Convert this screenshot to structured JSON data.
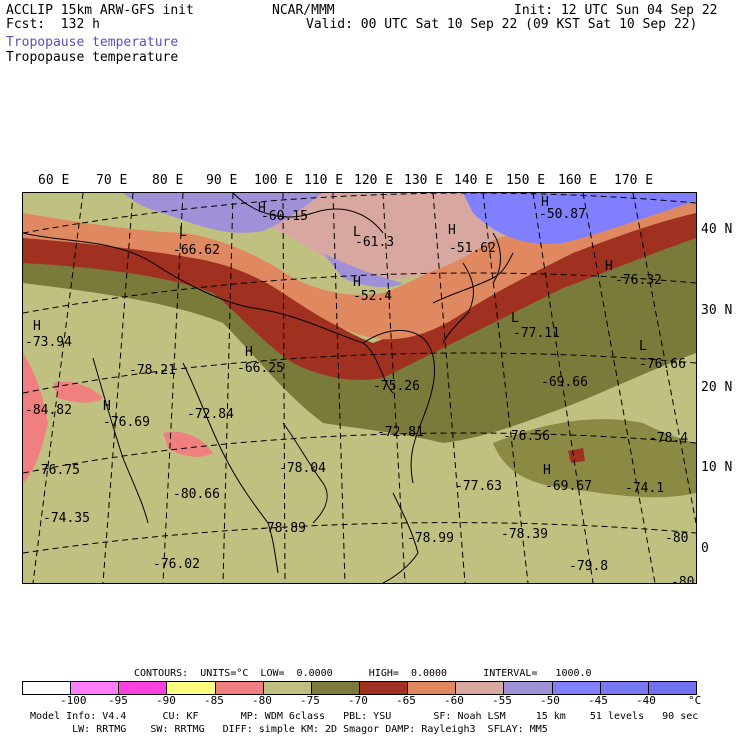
{
  "header": {
    "title_left": "ACCLIP 15km ARW-GFS init",
    "fcst": "Fcst:  132 h",
    "field_line1": "Tropopause temperature",
    "field_line2": "Tropopause temperature",
    "center_title": "NCAR/MMM",
    "init": "Init: 12 UTC Sun 04 Sep 22",
    "valid": "Valid: 00 UTC Sat 10 Sep 22 (09 KST Sat 10 Sep 22)"
  },
  "map": {
    "lon_labels": [
      "60 E",
      "70 E",
      "80 E",
      "90 E",
      "100 E",
      "110 E",
      "120 E",
      "130 E",
      "140 E",
      "150 E",
      "160 E",
      "170 E"
    ],
    "lat_labels": [
      "40 N",
      "30 N",
      "20 N",
      "10 N",
      "0"
    ],
    "labels": [
      {
        "text": "-60.15"
      },
      {
        "text": "-61.3"
      },
      {
        "text": "-50.87"
      },
      {
        "text": "-66.62"
      },
      {
        "text": "-51.62"
      },
      {
        "text": "-76.32"
      },
      {
        "text": "-52.4"
      },
      {
        "text": "-73.94"
      },
      {
        "text": "-77.11"
      },
      {
        "text": "-78.21"
      },
      {
        "text": "-66.25"
      },
      {
        "text": "-76.66"
      },
      {
        "text": "-84.82"
      },
      {
        "text": "-72.84"
      },
      {
        "text": "-75.26"
      },
      {
        "text": "-69.66"
      },
      {
        "text": "-76.69"
      },
      {
        "text": "-72.81"
      },
      {
        "text": "-76.56"
      },
      {
        "text": "-78.4"
      },
      {
        "text": "-76.75"
      },
      {
        "text": "-78.04"
      },
      {
        "text": "-77.63"
      },
      {
        "text": "-69.67"
      },
      {
        "text": "-74.1"
      },
      {
        "text": "-80.66"
      },
      {
        "text": "-74.35"
      },
      {
        "text": "-78.89"
      },
      {
        "text": "-78.99"
      },
      {
        "text": "-78.39"
      },
      {
        "text": "-80"
      },
      {
        "text": "-76.02"
      },
      {
        "text": "-79.8"
      },
      {
        "text": "-80"
      }
    ],
    "colors": {
      "lt_100": "#ffffff",
      "n95": "#ff80ff",
      "n90": "#ff40e0",
      "n85": "#ffff80",
      "n80": "#f08080",
      "n75": "#c0c080",
      "n70": "#7a7a3a",
      "n65": "#a03020",
      "n60": "#e08860",
      "n55": "#d8a8a0",
      "n50": "#a090d8",
      "n45": "#8080ff",
      "n40": "#7878f0"
    }
  },
  "legend": {
    "contours": "CONTOURS:  UNITS=°C  LOW=  0.0000      HIGH=  0.0000      INTERVAL=   1000.0",
    "colorbar": [
      "#ffffff",
      "#ff80ff",
      "#ff40e0",
      "#ffff80",
      "#f08080",
      "#c0c080",
      "#7a7a3a",
      "#a03020",
      "#e08860",
      "#d8a8a0",
      "#a090d8",
      "#8080ff",
      "#7878f0",
      "#7070f0"
    ],
    "tick_labels": [
      "-100",
      "-95",
      "-90",
      "-85",
      "-80",
      "-75",
      "-70",
      "-65",
      "-60",
      "-55",
      "-50",
      "-45",
      "-40",
      "°C"
    ]
  },
  "model_info": {
    "line1": "Model Info: V4.4      CU: KF       MP: WDM 6class   PBL: YSU       SF: Noah LSM     15 km    51 levels   90 sec",
    "line2": "       LW: RRTMG    SW: RRTMG   DIFF: simple KM: 2D Smagor DAMP: Rayleigh3  SFLAY: MM5"
  }
}
